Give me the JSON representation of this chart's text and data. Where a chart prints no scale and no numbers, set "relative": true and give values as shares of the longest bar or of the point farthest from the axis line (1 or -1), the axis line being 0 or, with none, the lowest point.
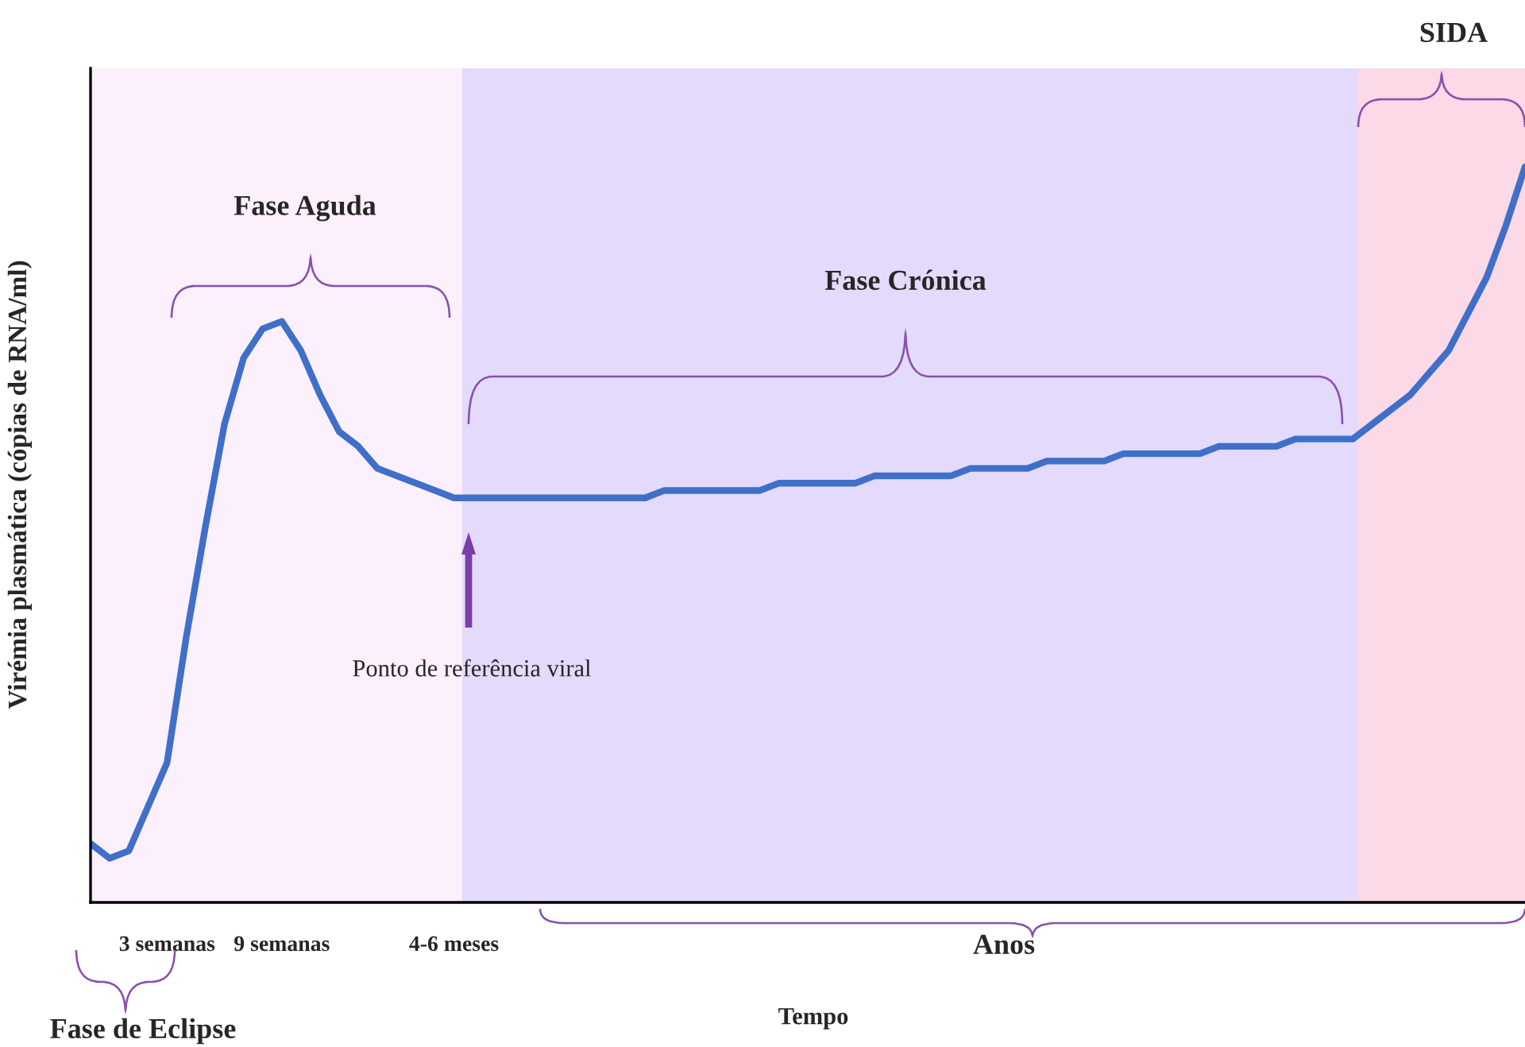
{
  "chart_data": {
    "type": "line",
    "relative": true,
    "xlabel": "Tempo",
    "ylabel": "Virémia plasmática (cópias de RNA/ml)",
    "categories": [
      null,
      null,
      null,
      null,
      "3 semanas",
      null,
      null,
      null,
      null,
      null,
      "9 semanas",
      null,
      null,
      null,
      null,
      null,
      null,
      null,
      null,
      "4-6 meses",
      null,
      null,
      null,
      null,
      null,
      null,
      null,
      null,
      null,
      null,
      null,
      null,
      null,
      null,
      null,
      null,
      null,
      null,
      null,
      null,
      null,
      null,
      null,
      null,
      null,
      null,
      null,
      null,
      null,
      null,
      null,
      null,
      null,
      null,
      null,
      null,
      null,
      null,
      null,
      null,
      null,
      null,
      null,
      null,
      null,
      null,
      null,
      null,
      null,
      null,
      null,
      null,
      null,
      null,
      null,
      null
    ],
    "series": [
      {
        "color": "#3f6fc9",
        "values": [
          0.08,
          0.06,
          0.07,
          0.13,
          0.19,
          0.36,
          0.51,
          0.65,
          0.74,
          0.78,
          0.79,
          0.75,
          0.69,
          0.64,
          0.62,
          0.59,
          0.58,
          0.57,
          0.56,
          0.55,
          0.55,
          0.55,
          0.55,
          0.55,
          0.55,
          0.55,
          0.55,
          0.55,
          0.55,
          0.55,
          0.56,
          0.56,
          0.56,
          0.56,
          0.56,
          0.56,
          0.57,
          0.57,
          0.57,
          0.57,
          0.57,
          0.58,
          0.58,
          0.58,
          0.58,
          0.58,
          0.59,
          0.59,
          0.59,
          0.59,
          0.6,
          0.6,
          0.6,
          0.6,
          0.61,
          0.61,
          0.61,
          0.61,
          0.61,
          0.62,
          0.62,
          0.62,
          0.62,
          0.63,
          0.63,
          0.63,
          0.63,
          0.65,
          0.67,
          0.69,
          0.72,
          0.75,
          0.8,
          0.85,
          0.92,
          1
        ]
      }
    ],
    "grid": false,
    "legend": false,
    "marker": "none",
    "line_style": "solid",
    "annotations": [
      "Fase Aguda",
      "Fase Crónica",
      "SIDA",
      "Fase de Eclipse",
      "Anos",
      "Ponto de referência viral"
    ]
  }
}
